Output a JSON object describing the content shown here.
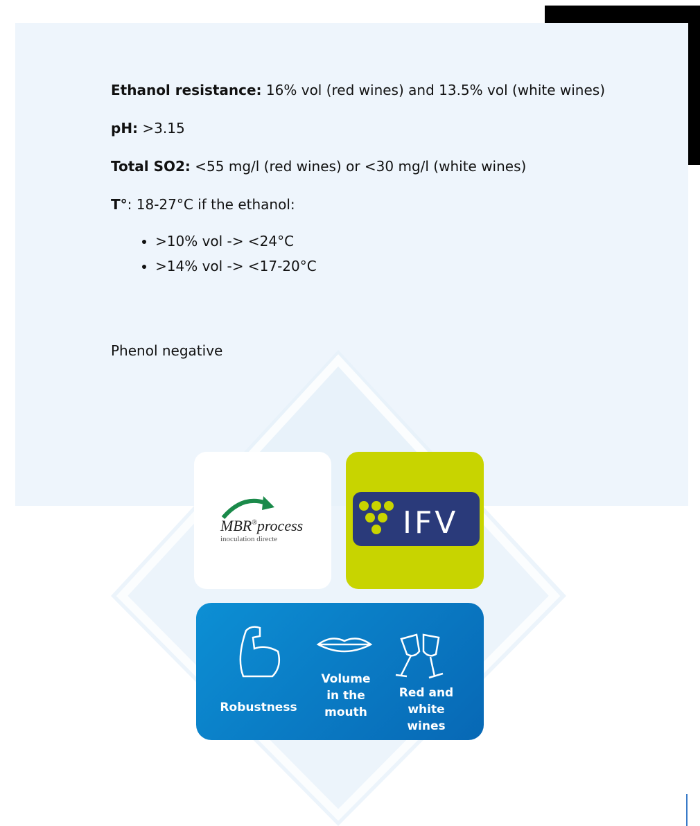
{
  "specs": [
    {
      "label": "Ethanol resistance:",
      "text": " 16% vol (red wines) and 13.5% vol (white wines)"
    },
    {
      "label": "pH:",
      "text": " >3.15"
    },
    {
      "label": "Total SO2:",
      "text": " <55 mg/l (red wines) or <30 mg/l (white wines)"
    },
    {
      "label": "T°",
      "text": ": 18-27°C if the ethanol:"
    }
  ],
  "bullets": [
    ">10% vol -> <24°C",
    ">14% vol -> <17-20°C"
  ],
  "note": "Phenol negative",
  "logos": {
    "mbr": "MBR",
    "mbr_sup": "®",
    "mbr_process": "process",
    "mbr_sub": "inoculation directe",
    "ifv": "IFV"
  },
  "features": [
    "Robustness",
    "Volume in the mouth",
    "Red and white wines"
  ]
}
